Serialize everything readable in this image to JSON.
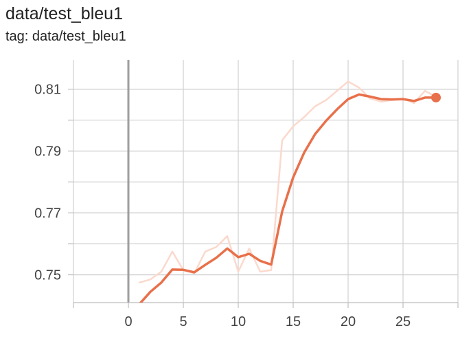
{
  "header": {
    "title": "data/test_bleu1",
    "tag": "tag: data/test_bleu1"
  },
  "chart_data": {
    "type": "line",
    "title": "data/test_bleu1",
    "subtitle": "tag: data/test_bleu1",
    "xlabel": "",
    "ylabel": "",
    "xlim": [
      -5,
      30
    ],
    "ylim": [
      0.741,
      0.8195
    ],
    "x_ticks": [
      0,
      5,
      10,
      15,
      20,
      25
    ],
    "y_ticks": [
      0.75,
      0.77,
      0.79,
      0.81
    ],
    "y_tick_labels": [
      "0.75",
      "0.77",
      "0.79",
      "0.81"
    ],
    "grid": true,
    "colors": {
      "smoothed": "#e8704a",
      "raw": "#fbd9cd",
      "axis": "#9e9e9e",
      "grid": "#d0d0d0"
    },
    "series": [
      {
        "role": "raw",
        "x": [
          1,
          2,
          3,
          4,
          5,
          6,
          7,
          8,
          9,
          10,
          11,
          12,
          13,
          14,
          15,
          16,
          17,
          18,
          19,
          20,
          21,
          22,
          23,
          24,
          25,
          26,
          27,
          28
        ],
        "values": [
          0.7475,
          0.7485,
          0.751,
          0.7575,
          0.7515,
          0.7505,
          0.7575,
          0.759,
          0.7625,
          0.751,
          0.7585,
          0.751,
          0.7515,
          0.7935,
          0.798,
          0.801,
          0.8045,
          0.8065,
          0.8095,
          0.8125,
          0.8105,
          0.807,
          0.806,
          0.8065,
          0.807,
          0.8055,
          0.8095,
          0.8075
        ]
      },
      {
        "role": "smoothed",
        "x": [
          1,
          2,
          3,
          4,
          5,
          6,
          7,
          8,
          9,
          10,
          11,
          12,
          13,
          14,
          15,
          16,
          17,
          18,
          19,
          20,
          21,
          22,
          23,
          24,
          25,
          26,
          27,
          28
        ],
        "values": [
          0.7405,
          0.7445,
          0.7475,
          0.7517,
          0.7516,
          0.7508,
          0.7532,
          0.7555,
          0.7585,
          0.7557,
          0.7568,
          0.7545,
          0.7533,
          0.7705,
          0.7815,
          0.7895,
          0.7955,
          0.7998,
          0.8035,
          0.8068,
          0.8083,
          0.8076,
          0.8068,
          0.8067,
          0.8068,
          0.8062,
          0.8073,
          0.8073
        ]
      }
    ]
  }
}
